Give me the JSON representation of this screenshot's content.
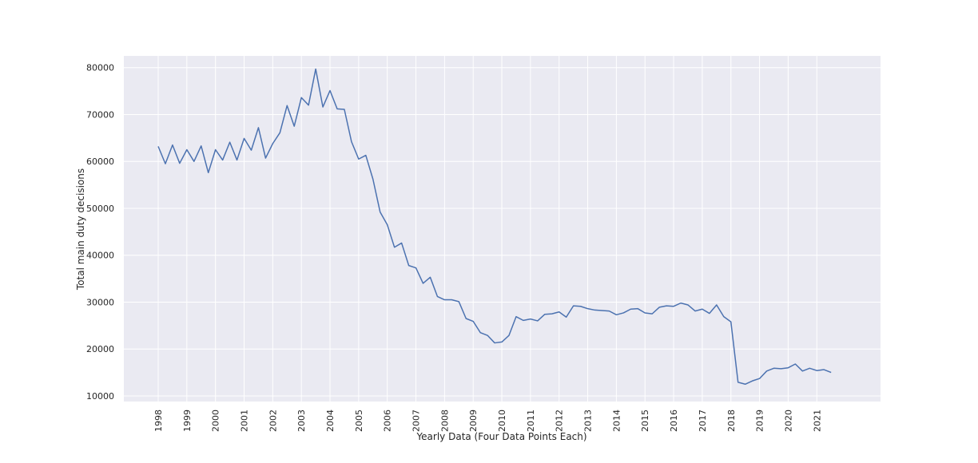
{
  "chart_data": {
    "type": "line",
    "title": "",
    "xlabel": "Yearly Data (Four Data Points Each)",
    "ylabel": "Total main duty decisions",
    "x_ticks": [
      "1998",
      "1999",
      "2000",
      "2001",
      "2002",
      "2003",
      "2004",
      "2005",
      "2006",
      "2007",
      "2008",
      "2009",
      "2010",
      "2011",
      "2012",
      "2013",
      "2014",
      "2015",
      "2016",
      "2017",
      "2018",
      "2019",
      "2020",
      "2021"
    ],
    "y_ticks": [
      10000,
      20000,
      30000,
      40000,
      50000,
      60000,
      70000,
      80000
    ],
    "ylim": [
      8800,
      82500
    ],
    "xlim": [
      -4.8,
      100.9
    ],
    "grid": true,
    "colors": {
      "background": "#EAEAF2",
      "grid": "#FFFFFF",
      "line": "#4C72B0"
    },
    "series": [
      {
        "values": [
          63200,
          59500,
          63500,
          59600,
          62500,
          60000,
          63300,
          57600,
          62500,
          60300,
          64100,
          60300,
          64900,
          62400,
          67200,
          60700,
          63800,
          66100,
          71900,
          67500,
          73600,
          72000,
          79700,
          71600,
          75100,
          71200,
          71100,
          64200,
          60500,
          61300,
          56200,
          49200,
          46500,
          41700,
          42600,
          37800,
          37300,
          34000,
          35300,
          31200,
          30500,
          30500,
          30100,
          26500,
          25900,
          23500,
          22900,
          21300,
          21500,
          22900,
          26900,
          26100,
          26400,
          26000,
          27400,
          27500,
          27900,
          26800,
          29200,
          29100,
          28600,
          28300,
          28200,
          28100,
          27300,
          27700,
          28500,
          28600,
          27700,
          27500,
          28900,
          29200,
          29100,
          29800,
          29400,
          28100,
          28500,
          27600,
          29400,
          26900,
          25800,
          12900,
          12500,
          13200,
          13700,
          15300,
          15900,
          15800,
          16000,
          16800,
          15300,
          15900,
          15400,
          15600,
          15000
        ]
      }
    ]
  }
}
